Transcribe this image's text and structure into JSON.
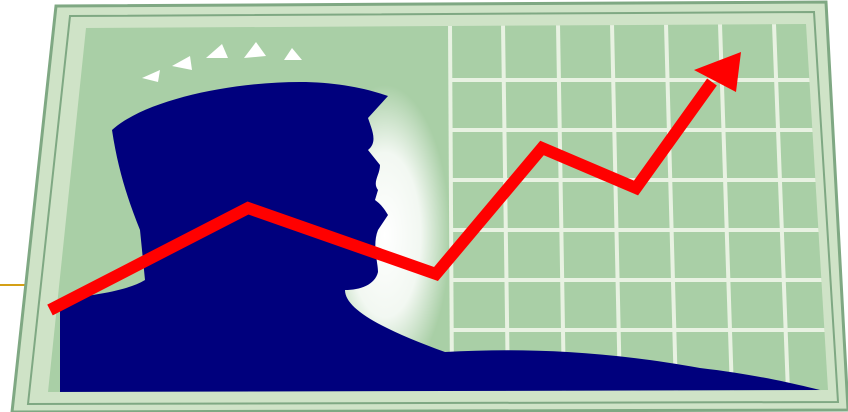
{
  "image": {
    "subject": "clipart",
    "elements": {
      "figure": "human-head-silhouette",
      "arrow": "rising-trend-arrow",
      "grid": "graph-paper-grid",
      "sparkles": "idea-sparkles"
    }
  },
  "colors": {
    "frame_light": "#cfe3c7",
    "frame_border": "#7fa883",
    "paper": "#a9cfa6",
    "grid_line": "#e8f2e2",
    "silhouette": "#00007d",
    "arrow": "#ff0000",
    "accent_line": "#d4a017",
    "sparkle": "#ffffff"
  }
}
